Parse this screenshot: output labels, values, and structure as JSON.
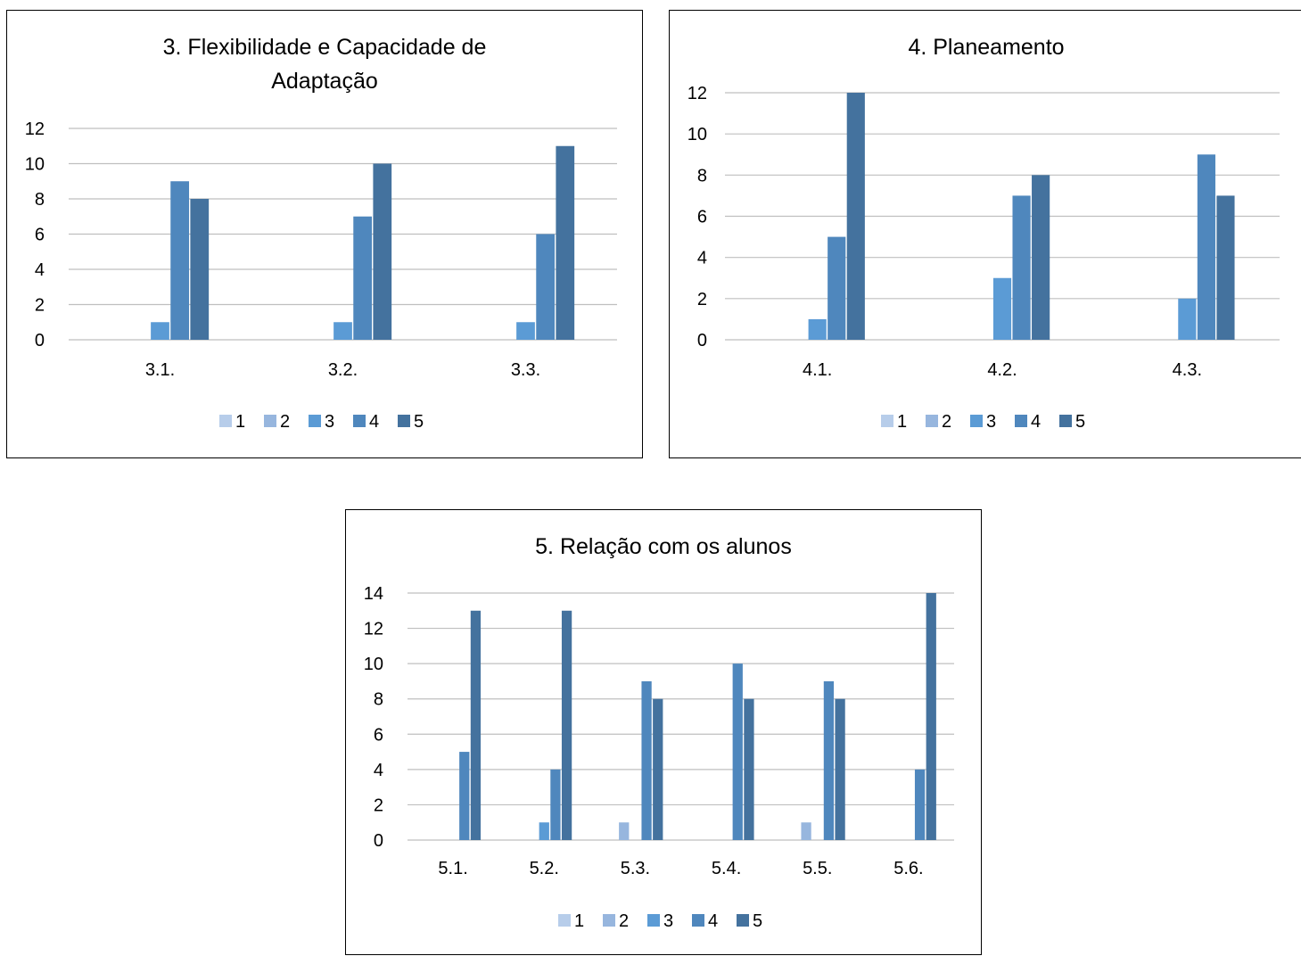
{
  "chart_data": [
    {
      "type": "bar",
      "title_lines": [
        "3. Flexibilidade e Capacidade de",
        "Adaptação"
      ],
      "categories": [
        "3.1.",
        "3.2.",
        "3.3."
      ],
      "ylim": [
        0,
        12
      ],
      "yticks": [
        "0",
        "2",
        "4",
        "6",
        "8",
        "10",
        "12"
      ],
      "grid": true,
      "legend_position": "bottom",
      "series": [
        {
          "name": "1",
          "values": [
            0,
            0,
            0
          ]
        },
        {
          "name": "2",
          "values": [
            0,
            0,
            0
          ]
        },
        {
          "name": "3",
          "values": [
            1,
            1,
            1
          ]
        },
        {
          "name": "4",
          "values": [
            9,
            7,
            6
          ]
        },
        {
          "name": "5",
          "values": [
            8,
            10,
            11
          ]
        }
      ]
    },
    {
      "type": "bar",
      "title_lines": [
        "4. Planeamento"
      ],
      "categories": [
        "4.1.",
        "4.2.",
        "4.3."
      ],
      "ylim": [
        0,
        12
      ],
      "yticks": [
        "0",
        "2",
        "4",
        "6",
        "8",
        "10",
        "12"
      ],
      "grid": true,
      "legend_position": "bottom",
      "series": [
        {
          "name": "1",
          "values": [
            0,
            0,
            0
          ]
        },
        {
          "name": "2",
          "values": [
            0,
            0,
            0
          ]
        },
        {
          "name": "3",
          "values": [
            1,
            3,
            2
          ]
        },
        {
          "name": "4",
          "values": [
            5,
            7,
            9
          ]
        },
        {
          "name": "5",
          "values": [
            12,
            8,
            7
          ]
        }
      ]
    },
    {
      "type": "bar",
      "title_lines": [
        "5. Relação com os alunos"
      ],
      "categories": [
        "5.1.",
        "5.2.",
        "5.3.",
        "5.4.",
        "5.5.",
        "5.6."
      ],
      "ylim": [
        0,
        14
      ],
      "yticks": [
        "0",
        "2",
        "4",
        "6",
        "8",
        "10",
        "12",
        "14"
      ],
      "grid": true,
      "legend_position": "bottom",
      "series": [
        {
          "name": "1",
          "values": [
            0,
            0,
            0,
            0,
            0,
            0
          ]
        },
        {
          "name": "2",
          "values": [
            0,
            0,
            1,
            0,
            1,
            0
          ]
        },
        {
          "name": "3",
          "values": [
            0,
            1,
            0,
            0,
            0,
            0
          ]
        },
        {
          "name": "4",
          "values": [
            5,
            4,
            9,
            10,
            9,
            4
          ]
        },
        {
          "name": "5",
          "values": [
            13,
            13,
            8,
            8,
            8,
            14
          ]
        }
      ]
    }
  ],
  "colors": {
    "series": [
      "#b7cdea",
      "#97b6de",
      "#5b9bd5",
      "#4f87bd",
      "#44729e"
    ],
    "grid": "#bfbfbf",
    "axis": "#bfbfbf",
    "text": "#000000"
  }
}
